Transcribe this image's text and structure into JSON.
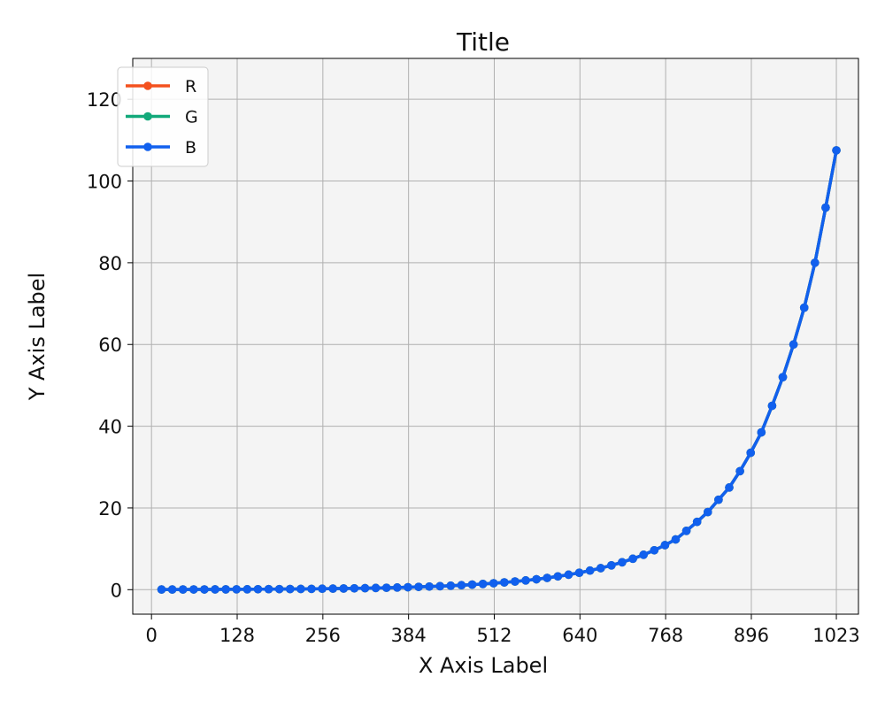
{
  "chart_data": {
    "type": "line",
    "title": "Title",
    "xlabel": "X Axis Label",
    "ylabel": "Y Axis Label",
    "xlim": [
      -28,
      1056
    ],
    "ylim": [
      -6,
      130
    ],
    "xticks": [
      0,
      128,
      256,
      384,
      512,
      640,
      768,
      896,
      1023
    ],
    "yticks": [
      0,
      20,
      40,
      60,
      80,
      100,
      120
    ],
    "grid": true,
    "legend_position": "top-left",
    "plot_background": "#f4f4f4",
    "x": [
      15,
      31,
      47,
      63,
      79,
      95,
      111,
      127,
      143,
      159,
      175,
      191,
      207,
      223,
      239,
      255,
      271,
      287,
      303,
      319,
      335,
      351,
      367,
      383,
      399,
      415,
      431,
      447,
      463,
      479,
      495,
      511,
      527,
      543,
      559,
      575,
      591,
      607,
      623,
      639,
      655,
      671,
      687,
      703,
      719,
      735,
      751,
      767,
      783,
      799,
      815,
      831,
      847,
      863,
      879,
      895,
      911,
      927,
      943,
      959,
      975,
      991,
      1007,
      1023
    ],
    "series": [
      {
        "name": "R",
        "color": "#f4511e",
        "values": [
          0.04,
          0.04,
          0.05,
          0.06,
          0.06,
          0.07,
          0.08,
          0.09,
          0.1,
          0.11,
          0.13,
          0.14,
          0.16,
          0.18,
          0.2,
          0.23,
          0.26,
          0.29,
          0.33,
          0.37,
          0.42,
          0.47,
          0.53,
          0.6,
          0.68,
          0.76,
          0.86,
          0.97,
          1.1,
          1.24,
          1.4,
          1.58,
          1.78,
          2.0,
          2.26,
          2.55,
          2.88,
          3.25,
          3.67,
          4.14,
          4.67,
          5.27,
          5.95,
          6.71,
          7.57,
          8.54,
          9.64,
          10.9,
          12.3,
          14.4,
          16.6,
          19.0,
          22.0,
          25.0,
          29.0,
          33.5,
          38.5,
          45.0,
          52.0,
          60.0,
          69.0,
          80.0,
          93.5,
          107.5
        ]
      },
      {
        "name": "G",
        "color": "#12a97a",
        "values": [
          0.04,
          0.04,
          0.05,
          0.06,
          0.06,
          0.07,
          0.08,
          0.09,
          0.1,
          0.11,
          0.13,
          0.14,
          0.16,
          0.18,
          0.2,
          0.23,
          0.26,
          0.29,
          0.33,
          0.37,
          0.42,
          0.47,
          0.53,
          0.6,
          0.68,
          0.76,
          0.86,
          0.97,
          1.1,
          1.24,
          1.4,
          1.58,
          1.78,
          2.0,
          2.26,
          2.55,
          2.88,
          3.25,
          3.67,
          4.14,
          4.67,
          5.27,
          5.95,
          6.71,
          7.57,
          8.54,
          9.64,
          10.9,
          12.3,
          14.4,
          16.6,
          19.0,
          22.0,
          25.0,
          29.0,
          33.5,
          38.5,
          45.0,
          52.0,
          60.0,
          69.0,
          80.0,
          93.5,
          107.5
        ]
      },
      {
        "name": "B",
        "color": "#1160ee",
        "values": [
          0.04,
          0.04,
          0.05,
          0.06,
          0.06,
          0.07,
          0.08,
          0.09,
          0.1,
          0.11,
          0.13,
          0.14,
          0.16,
          0.18,
          0.2,
          0.23,
          0.26,
          0.29,
          0.33,
          0.37,
          0.42,
          0.47,
          0.53,
          0.6,
          0.68,
          0.76,
          0.86,
          0.97,
          1.1,
          1.24,
          1.4,
          1.58,
          1.78,
          2.0,
          2.26,
          2.55,
          2.88,
          3.25,
          3.67,
          4.14,
          4.67,
          5.27,
          5.95,
          6.71,
          7.57,
          8.54,
          9.64,
          10.9,
          12.3,
          14.4,
          16.6,
          19.0,
          22.0,
          25.0,
          29.0,
          33.5,
          38.5,
          45.0,
          52.0,
          60.0,
          69.0,
          80.0,
          93.5,
          107.5
        ]
      }
    ]
  }
}
